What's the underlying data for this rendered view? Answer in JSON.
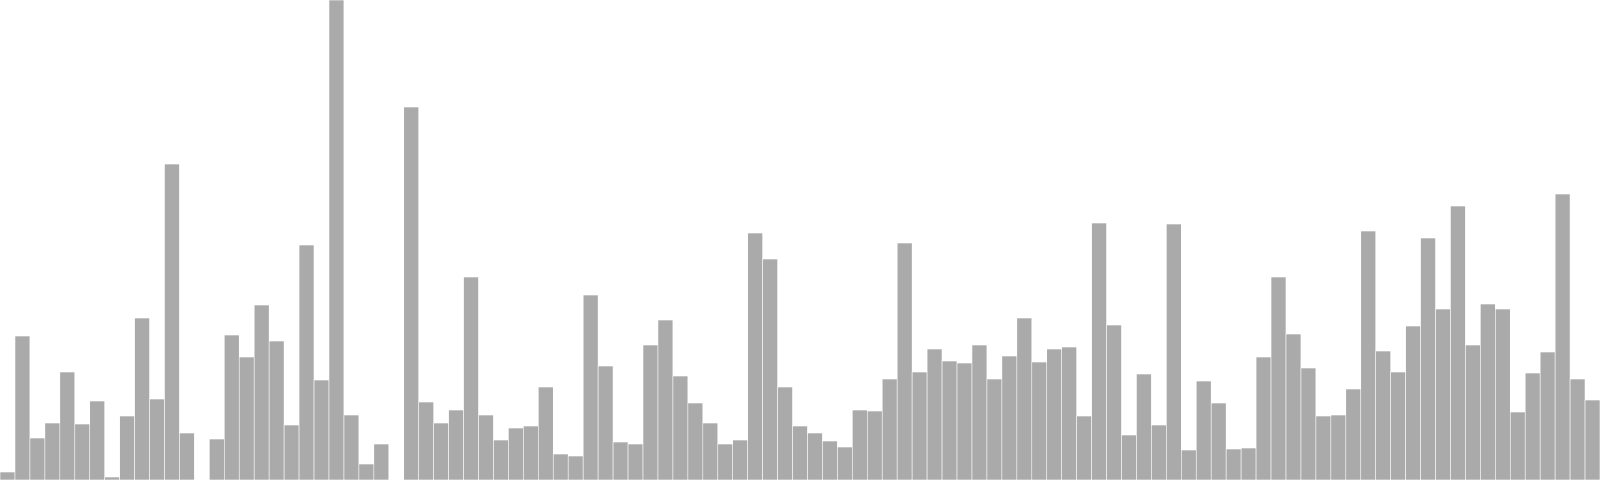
{
  "chart_data": {
    "type": "bar",
    "title": "",
    "xlabel": "",
    "ylabel": "",
    "ylim": [
      0,
      480
    ],
    "grid": false,
    "legend": "none",
    "bar_color": "#aaaaaa",
    "values": [
      8,
      144,
      42,
      57,
      108,
      56,
      79,
      3,
      64,
      162,
      81,
      316,
      47,
      0,
      41,
      145,
      123,
      175,
      139,
      55,
      235,
      100,
      480,
      65,
      16,
      36,
      0,
      373,
      78,
      57,
      70,
      203,
      65,
      40,
      52,
      54,
      93,
      26,
      24,
      185,
      114,
      38,
      36,
      135,
      160,
      104,
      77,
      57,
      36,
      40,
      247,
      221,
      93,
      54,
      47,
      39,
      33,
      70,
      69,
      101,
      237,
      108,
      131,
      119,
      117,
      135,
      101,
      124,
      162,
      118,
      131,
      133,
      64,
      257,
      155,
      45,
      106,
      55,
      256,
      30,
      99,
      77,
      31,
      32,
      123,
      203,
      146,
      112,
      64,
      65,
      91,
      249,
      129,
      108,
      154,
      242,
      171,
      274,
      135,
      176,
      171,
      68,
      107,
      128,
      286,
      101,
      80
    ]
  }
}
